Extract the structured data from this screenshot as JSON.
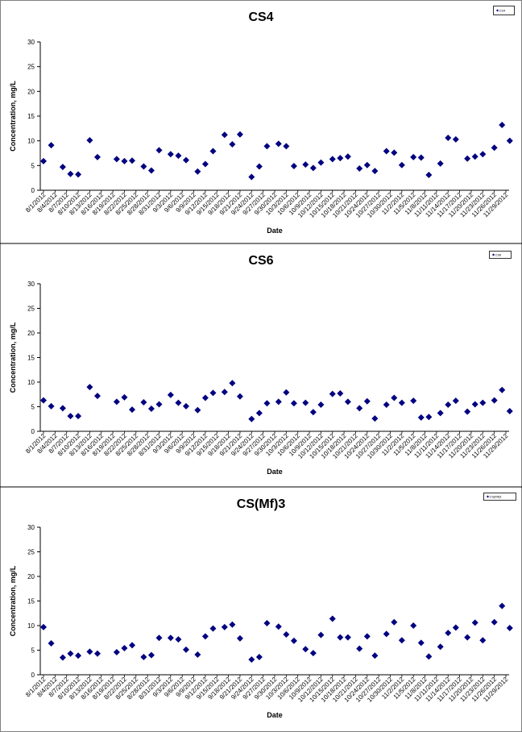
{
  "colors": {
    "marker": "#000080",
    "axis": "#000000",
    "background": "#ffffff"
  },
  "x_tick_labels": [
    "8/1/2012",
    "8/4/2012",
    "8/7/2012",
    "8/10/2012",
    "8/13/2012",
    "8/16/2012",
    "8/19/2012",
    "8/22/2012",
    "8/25/2012",
    "8/28/2012",
    "8/31/2012",
    "9/3/2012",
    "9/6/2012",
    "9/9/2012",
    "9/12/2012",
    "9/15/2012",
    "9/18/2012",
    "9/21/2012",
    "9/24/2012",
    "9/27/2012",
    "9/30/2012",
    "10/3/2012",
    "10/6/2012",
    "10/9/2012",
    "10/12/2012",
    "10/15/2012",
    "10/18/2012",
    "10/21/2012",
    "10/24/2012",
    "10/27/2012",
    "10/30/2012",
    "11/2/2012",
    "11/5/2012",
    "11/8/2012",
    "11/11/2012",
    "11/14/2012",
    "11/17/2012",
    "11/20/2012",
    "11/23/2012",
    "11/26/2012",
    "11/29/2012"
  ],
  "chart_data": [
    {
      "type": "scatter",
      "title": "CS4",
      "xlabel": "Date",
      "ylabel": "Concentration, mg/L",
      "ylim": [
        0,
        30
      ],
      "yticks": [
        0,
        5,
        10,
        15,
        20,
        25,
        30
      ],
      "xlim": [
        "8/1/2012",
        "11/29/2012"
      ],
      "grid": false,
      "legend": {
        "placement": "top-right",
        "label": "CS4"
      },
      "series": [
        {
          "name": "CS4",
          "points": [
            {
              "x": "8/1/2012",
              "y": 5.9
            },
            {
              "x": "8/3/2012",
              "y": 9.1
            },
            {
              "x": "8/6/2012",
              "y": 4.7
            },
            {
              "x": "8/8/2012",
              "y": 3.3
            },
            {
              "x": "8/10/2012",
              "y": 3.2
            },
            {
              "x": "8/13/2012",
              "y": 10.1
            },
            {
              "x": "8/15/2012",
              "y": 6.7
            },
            {
              "x": "8/20/2012",
              "y": 6.3
            },
            {
              "x": "8/22/2012",
              "y": 5.9
            },
            {
              "x": "8/24/2012",
              "y": 6.0
            },
            {
              "x": "8/27/2012",
              "y": 4.8
            },
            {
              "x": "8/29/2012",
              "y": 4.0
            },
            {
              "x": "8/31/2012",
              "y": 8.1
            },
            {
              "x": "9/3/2012",
              "y": 7.3
            },
            {
              "x": "9/5/2012",
              "y": 7.0
            },
            {
              "x": "9/7/2012",
              "y": 6.1
            },
            {
              "x": "9/10/2012",
              "y": 3.8
            },
            {
              "x": "9/12/2012",
              "y": 5.3
            },
            {
              "x": "9/14/2012",
              "y": 7.9
            },
            {
              "x": "9/17/2012",
              "y": 11.2
            },
            {
              "x": "9/19/2012",
              "y": 9.3
            },
            {
              "x": "9/21/2012",
              "y": 11.3
            },
            {
              "x": "9/24/2012",
              "y": 2.7
            },
            {
              "x": "9/26/2012",
              "y": 4.8
            },
            {
              "x": "9/28/2012",
              "y": 8.9
            },
            {
              "x": "10/1/2012",
              "y": 9.4
            },
            {
              "x": "10/3/2012",
              "y": 8.9
            },
            {
              "x": "10/5/2012",
              "y": 4.9
            },
            {
              "x": "10/8/2012",
              "y": 5.2
            },
            {
              "x": "10/10/2012",
              "y": 4.5
            },
            {
              "x": "10/12/2012",
              "y": 5.6
            },
            {
              "x": "10/15/2012",
              "y": 6.3
            },
            {
              "x": "10/17/2012",
              "y": 6.5
            },
            {
              "x": "10/19/2012",
              "y": 6.8
            },
            {
              "x": "10/22/2012",
              "y": 4.4
            },
            {
              "x": "10/24/2012",
              "y": 5.1
            },
            {
              "x": "10/26/2012",
              "y": 3.9
            },
            {
              "x": "10/29/2012",
              "y": 7.9
            },
            {
              "x": "10/31/2012",
              "y": 7.6
            },
            {
              "x": "11/2/2012",
              "y": 5.1
            },
            {
              "x": "11/5/2012",
              "y": 6.7
            },
            {
              "x": "11/7/2012",
              "y": 6.6
            },
            {
              "x": "11/9/2012",
              "y": 3.1
            },
            {
              "x": "11/12/2012",
              "y": 5.4
            },
            {
              "x": "11/14/2012",
              "y": 10.6
            },
            {
              "x": "11/16/2012",
              "y": 10.3
            },
            {
              "x": "11/19/2012",
              "y": 6.4
            },
            {
              "x": "11/21/2012",
              "y": 6.8
            },
            {
              "x": "11/23/2012",
              "y": 7.3
            },
            {
              "x": "11/26/2012",
              "y": 8.6
            },
            {
              "x": "11/28/2012",
              "y": 13.2
            },
            {
              "x": "11/30/2012",
              "y": 10.0
            }
          ]
        }
      ]
    },
    {
      "type": "scatter",
      "title": "CS6",
      "xlabel": "Date",
      "ylabel": "Concentration, mg/L",
      "ylim": [
        0,
        30
      ],
      "yticks": [
        0,
        5,
        10,
        15,
        20,
        25,
        30
      ],
      "xlim": [
        "8/1/2012",
        "11/29/2012"
      ],
      "grid": false,
      "legend": {
        "placement": "top-right",
        "label": "CS6"
      },
      "series": [
        {
          "name": "CS6",
          "points": [
            {
              "x": "8/1/2012",
              "y": 6.3
            },
            {
              "x": "8/3/2012",
              "y": 5.1
            },
            {
              "x": "8/6/2012",
              "y": 4.7
            },
            {
              "x": "8/8/2012",
              "y": 3.1
            },
            {
              "x": "8/10/2012",
              "y": 3.1
            },
            {
              "x": "8/13/2012",
              "y": 9.0
            },
            {
              "x": "8/15/2012",
              "y": 7.2
            },
            {
              "x": "8/20/2012",
              "y": 6.0
            },
            {
              "x": "8/22/2012",
              "y": 6.9
            },
            {
              "x": "8/24/2012",
              "y": 4.4
            },
            {
              "x": "8/27/2012",
              "y": 5.9
            },
            {
              "x": "8/29/2012",
              "y": 4.6
            },
            {
              "x": "8/31/2012",
              "y": 5.5
            },
            {
              "x": "9/3/2012",
              "y": 7.4
            },
            {
              "x": "9/5/2012",
              "y": 5.8
            },
            {
              "x": "9/7/2012",
              "y": 5.1
            },
            {
              "x": "9/10/2012",
              "y": 4.3
            },
            {
              "x": "9/12/2012",
              "y": 6.8
            },
            {
              "x": "9/14/2012",
              "y": 7.8
            },
            {
              "x": "9/17/2012",
              "y": 8.0
            },
            {
              "x": "9/19/2012",
              "y": 9.8
            },
            {
              "x": "9/21/2012",
              "y": 7.1
            },
            {
              "x": "9/24/2012",
              "y": 2.5
            },
            {
              "x": "9/26/2012",
              "y": 3.7
            },
            {
              "x": "9/28/2012",
              "y": 5.7
            },
            {
              "x": "10/1/2012",
              "y": 6.0
            },
            {
              "x": "10/3/2012",
              "y": 7.9
            },
            {
              "x": "10/5/2012",
              "y": 5.7
            },
            {
              "x": "10/8/2012",
              "y": 5.8
            },
            {
              "x": "10/10/2012",
              "y": 3.9
            },
            {
              "x": "10/12/2012",
              "y": 5.4
            },
            {
              "x": "10/15/2012",
              "y": 7.6
            },
            {
              "x": "10/17/2012",
              "y": 7.7
            },
            {
              "x": "10/19/2012",
              "y": 6.0
            },
            {
              "x": "10/22/2012",
              "y": 4.7
            },
            {
              "x": "10/24/2012",
              "y": 6.1
            },
            {
              "x": "10/26/2012",
              "y": 2.6
            },
            {
              "x": "10/29/2012",
              "y": 5.4
            },
            {
              "x": "10/31/2012",
              "y": 6.8
            },
            {
              "x": "11/2/2012",
              "y": 5.8
            },
            {
              "x": "11/5/2012",
              "y": 6.2
            },
            {
              "x": "11/7/2012",
              "y": 2.8
            },
            {
              "x": "11/9/2012",
              "y": 2.9
            },
            {
              "x": "11/12/2012",
              "y": 3.7
            },
            {
              "x": "11/14/2012",
              "y": 5.4
            },
            {
              "x": "11/16/2012",
              "y": 6.2
            },
            {
              "x": "11/19/2012",
              "y": 4.0
            },
            {
              "x": "11/21/2012",
              "y": 5.5
            },
            {
              "x": "11/23/2012",
              "y": 5.8
            },
            {
              "x": "11/26/2012",
              "y": 6.3
            },
            {
              "x": "11/28/2012",
              "y": 8.4
            },
            {
              "x": "11/30/2012",
              "y": 4.1
            }
          ]
        }
      ]
    },
    {
      "type": "scatter",
      "title": "CS(Mf)3",
      "xlabel": "Date",
      "ylabel": "Concentration, mg/L",
      "ylim": [
        0,
        30
      ],
      "yticks": [
        0,
        5,
        10,
        15,
        20,
        25,
        30
      ],
      "xlim": [
        "8/1/2012",
        "11/29/2012"
      ],
      "grid": false,
      "legend": {
        "placement": "top-right",
        "label": "CS(Mf)3"
      },
      "series": [
        {
          "name": "CS(Mf)3",
          "points": [
            {
              "x": "8/1/2012",
              "y": 9.7
            },
            {
              "x": "8/3/2012",
              "y": 6.4
            },
            {
              "x": "8/6/2012",
              "y": 3.5
            },
            {
              "x": "8/8/2012",
              "y": 4.3
            },
            {
              "x": "8/10/2012",
              "y": 3.9
            },
            {
              "x": "8/13/2012",
              "y": 4.7
            },
            {
              "x": "8/15/2012",
              "y": 4.3
            },
            {
              "x": "8/20/2012",
              "y": 4.6
            },
            {
              "x": "8/22/2012",
              "y": 5.4
            },
            {
              "x": "8/24/2012",
              "y": 6.0
            },
            {
              "x": "8/27/2012",
              "y": 3.6
            },
            {
              "x": "8/29/2012",
              "y": 4.0
            },
            {
              "x": "8/31/2012",
              "y": 7.5
            },
            {
              "x": "9/3/2012",
              "y": 7.5
            },
            {
              "x": "9/5/2012",
              "y": 7.2
            },
            {
              "x": "9/7/2012",
              "y": 5.1
            },
            {
              "x": "9/10/2012",
              "y": 4.1
            },
            {
              "x": "9/12/2012",
              "y": 7.8
            },
            {
              "x": "9/14/2012",
              "y": 9.4
            },
            {
              "x": "9/17/2012",
              "y": 9.7
            },
            {
              "x": "9/19/2012",
              "y": 10.2
            },
            {
              "x": "9/21/2012",
              "y": 7.4
            },
            {
              "x": "9/24/2012",
              "y": 3.1
            },
            {
              "x": "9/26/2012",
              "y": 3.6
            },
            {
              "x": "9/28/2012",
              "y": 10.5
            },
            {
              "x": "10/1/2012",
              "y": 9.8
            },
            {
              "x": "10/3/2012",
              "y": 8.2
            },
            {
              "x": "10/5/2012",
              "y": 6.9
            },
            {
              "x": "10/8/2012",
              "y": 5.2
            },
            {
              "x": "10/10/2012",
              "y": 4.4
            },
            {
              "x": "10/12/2012",
              "y": 8.1
            },
            {
              "x": "10/15/2012",
              "y": 11.4
            },
            {
              "x": "10/17/2012",
              "y": 7.6
            },
            {
              "x": "10/19/2012",
              "y": 7.6
            },
            {
              "x": "10/22/2012",
              "y": 5.3
            },
            {
              "x": "10/24/2012",
              "y": 7.8
            },
            {
              "x": "10/26/2012",
              "y": 3.9
            },
            {
              "x": "10/29/2012",
              "y": 8.3
            },
            {
              "x": "10/31/2012",
              "y": 10.7
            },
            {
              "x": "11/2/2012",
              "y": 7.0
            },
            {
              "x": "11/5/2012",
              "y": 10.0
            },
            {
              "x": "11/7/2012",
              "y": 6.5
            },
            {
              "x": "11/9/2012",
              "y": 3.7
            },
            {
              "x": "11/12/2012",
              "y": 5.7
            },
            {
              "x": "11/14/2012",
              "y": 8.5
            },
            {
              "x": "11/16/2012",
              "y": 9.6
            },
            {
              "x": "11/19/2012",
              "y": 7.6
            },
            {
              "x": "11/21/2012",
              "y": 10.6
            },
            {
              "x": "11/23/2012",
              "y": 7.0
            },
            {
              "x": "11/26/2012",
              "y": 10.7
            },
            {
              "x": "11/28/2012",
              "y": 14.0
            },
            {
              "x": "11/30/2012",
              "y": 9.5
            }
          ]
        }
      ]
    }
  ]
}
